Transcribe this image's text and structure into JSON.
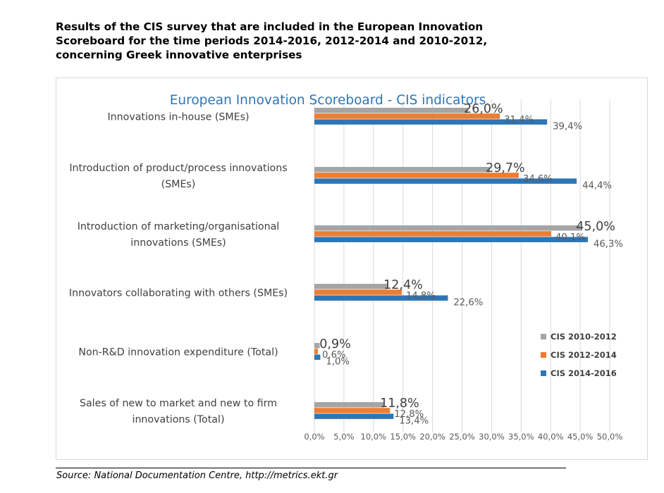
{
  "header": {
    "lines": [
      "Results of the CIS survey that are included in the European Innovation",
      "Scoreboard for the time periods 2014-2016, 2012-2014 and 2010-2012,",
      "concerning Greek innovative enterprises"
    ]
  },
  "source": "Source: National Documentation Centre, http://metrics.ekt.gr",
  "chart_data": {
    "type": "bar",
    "orientation": "horizontal",
    "title": "European Innovation Scoreboard - CIS indicators",
    "categories": [
      [
        "Innovations in-house (SMEs)"
      ],
      [
        "Introduction of product/process innovations",
        "(SMEs)"
      ],
      [
        "Introduction of marketing/organisational",
        "innovations (SMEs)"
      ],
      [
        "Innovators collaborating with others (SMEs)"
      ],
      [
        "Non-R&D innovation expenditure (Total)"
      ],
      [
        "Sales of new to market and new to firm",
        "innovations (Total)"
      ]
    ],
    "series": [
      {
        "name": "CIS 2010-2012",
        "color": "#a5a5a5",
        "values": [
          26.0,
          29.7,
          45.0,
          12.4,
          0.9,
          11.8
        ],
        "labels": [
          "26,0%",
          "29,7%",
          "45,0%",
          "12,4%",
          "0,9%",
          "11,8%"
        ]
      },
      {
        "name": "CIS 2012-2014",
        "color": "#ed7d31",
        "values": [
          31.4,
          34.6,
          40.1,
          14.8,
          0.6,
          12.8
        ],
        "labels": [
          "31,4%",
          "34,6%",
          "40,1%",
          "14,8%",
          "0,6%",
          "12,8%"
        ]
      },
      {
        "name": "CIS 2014-2016",
        "color": "#2e75b6",
        "values": [
          39.4,
          44.4,
          46.3,
          22.6,
          1.0,
          13.4
        ],
        "labels": [
          "39,4%",
          "44,4%",
          "46,3%",
          "22,6%",
          "1,0%",
          "13,4%"
        ]
      }
    ],
    "x_ticks": [
      "0,0%",
      "5,0%",
      "10,0%",
      "15,0%",
      "20,0%",
      "25,0%",
      "30,0%",
      "35,0%",
      "40,0%",
      "45,0%",
      "50,0%"
    ],
    "xlim": [
      0,
      50
    ],
    "grid": true,
    "legend_position": "bottom-right",
    "title_color": "#2e75b6",
    "grid_color": "#d9d9d9"
  }
}
